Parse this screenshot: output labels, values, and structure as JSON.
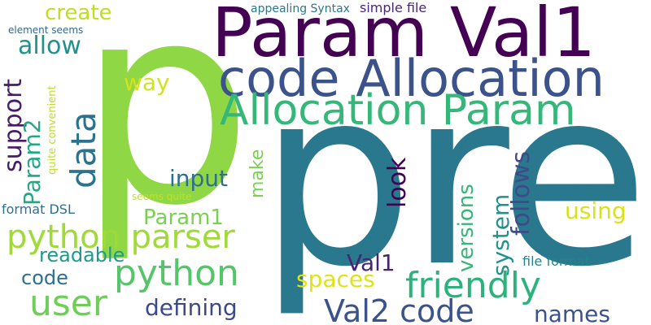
{
  "word_cloud": {
    "background": "#ffffff",
    "words": [
      {
        "id": "pre",
        "text": "pre",
        "color": "#2a788e"
      },
      {
        "id": "p",
        "text": "p",
        "color": "#8fd744"
      },
      {
        "id": "param-val1",
        "text": "Param Val1",
        "color": "#440154"
      },
      {
        "id": "code-allocation",
        "text": "code Allocation",
        "color": "#3b528b"
      },
      {
        "id": "allocation-param",
        "text": "Allocation Param",
        "color": "#35b779"
      },
      {
        "id": "create",
        "text": "create",
        "color": "#bddf26"
      },
      {
        "id": "allow",
        "text": "allow",
        "color": "#21918c"
      },
      {
        "id": "way",
        "text": "way",
        "color": "#d2e21b"
      },
      {
        "id": "element-seems",
        "text": "element seems",
        "color": "#31688e"
      },
      {
        "id": "appealing-syntax",
        "text": "appealing Syntax",
        "color": "#2a788e"
      },
      {
        "id": "simple-file",
        "text": "simple file",
        "color": "#482878"
      },
      {
        "id": "support",
        "text": "support",
        "color": "#481a6c"
      },
      {
        "id": "data",
        "text": "data",
        "color": "#2c728e"
      },
      {
        "id": "param2",
        "text": "Param2",
        "color": "#22a884"
      },
      {
        "id": "quite-convenient",
        "text": "quite convenient",
        "color": "#bddf26"
      },
      {
        "id": "input",
        "text": "input",
        "color": "#2e6e8e"
      },
      {
        "id": "make",
        "text": "make",
        "color": "#7ad151"
      },
      {
        "id": "seems-quite",
        "text": "seems quite",
        "color": "#c2df23"
      },
      {
        "id": "format-dsl",
        "text": "format DSL",
        "color": "#2d708e"
      },
      {
        "id": "param1",
        "text": "Param1",
        "color": "#7ad151"
      },
      {
        "id": "python-parser",
        "text": "python parser",
        "color": "#a0da39"
      },
      {
        "id": "look",
        "text": "look",
        "color": "#440154"
      },
      {
        "id": "versions",
        "text": "versions",
        "color": "#35b779"
      },
      {
        "id": "system",
        "text": "system",
        "color": "#21918c"
      },
      {
        "id": "follows",
        "text": "follows",
        "color": "#3e4a89"
      },
      {
        "id": "using",
        "text": "using",
        "color": "#d8e219"
      },
      {
        "id": "readable",
        "text": "readable",
        "color": "#1f998a"
      },
      {
        "id": "python",
        "text": "python",
        "color": "#54c568"
      },
      {
        "id": "code-small",
        "text": "code",
        "color": "#2d708e"
      },
      {
        "id": "val1",
        "text": "Val1",
        "color": "#482475"
      },
      {
        "id": "spaces",
        "text": "spaces",
        "color": "#dde318"
      },
      {
        "id": "friendly",
        "text": "friendly",
        "color": "#2db27d"
      },
      {
        "id": "file-format",
        "text": "file format",
        "color": "#25838e"
      },
      {
        "id": "user",
        "text": "user",
        "color": "#6ece58"
      },
      {
        "id": "defining",
        "text": "defining",
        "color": "#3e4989"
      },
      {
        "id": "val2-code",
        "text": "Val2 code",
        "color": "#3b528b"
      },
      {
        "id": "names",
        "text": "names",
        "color": "#3b528b"
      }
    ]
  }
}
